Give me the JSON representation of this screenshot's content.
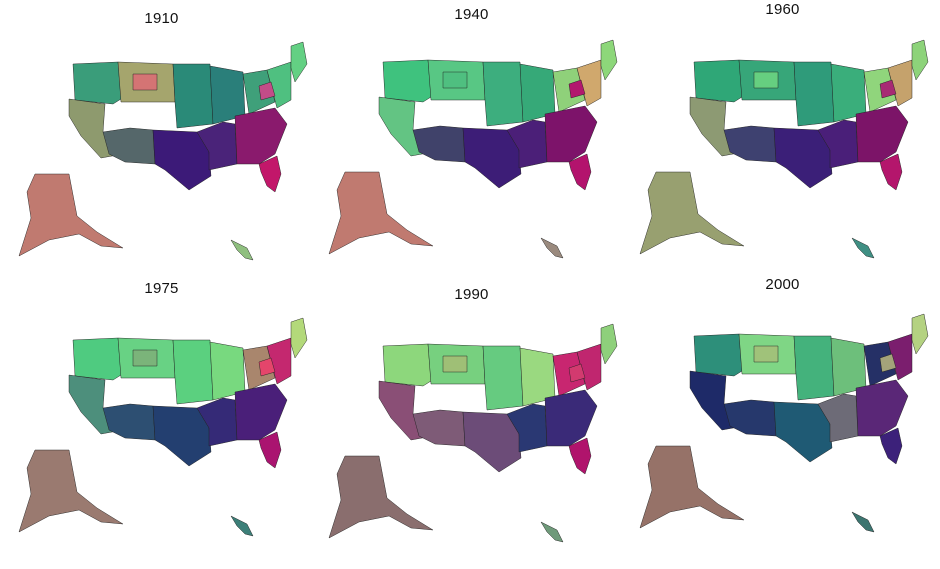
{
  "figure": {
    "panels": [
      {
        "year": "1910",
        "colors": {
          "nw": "#3a9d7a",
          "west": "#8e9a6e",
          "mountain": "#a5a56d",
          "highlight": "#d47474",
          "southwest": "#55676a",
          "plains": "#2a8a78",
          "midwest": "#2a7f7a",
          "lakes": "#3fa07a",
          "texas": "#3c1a78",
          "south": "#4a2379",
          "southeast": "#8a1a6d",
          "florida": "#c2176a",
          "northeast": "#4fc080",
          "newengland": "#63d083",
          "alaska": "#c07a70",
          "hawaii": "#8fbf7f",
          "accent": "#c24c88"
        }
      },
      {
        "year": "1940",
        "colors": {
          "nw": "#3fc27e",
          "west": "#63c483",
          "mountain": "#58c784",
          "highlight": "#4fbf80",
          "southwest": "#40426a",
          "plains": "#3dae7e",
          "midwest": "#36a978",
          "lakes": "#8fd17a",
          "texas": "#3d1d77",
          "south": "#4b1f78",
          "southeast": "#7d136a",
          "florida": "#b3136d",
          "northeast": "#d0a86d",
          "newengland": "#8dd77a",
          "alaska": "#c07a70",
          "hawaii": "#9a8a7e",
          "accent": "#b2186e"
        }
      },
      {
        "year": "1960",
        "colors": {
          "nw": "#2fa777",
          "west": "#8d9a73",
          "mountain": "#37a679",
          "highlight": "#66cf80",
          "southwest": "#3e4170",
          "plains": "#2f9b7a",
          "midwest": "#3aae7b",
          "lakes": "#90d57c",
          "texas": "#3b1f78",
          "south": "#4a1f79",
          "southeast": "#7c1468",
          "florida": "#b4166c",
          "northeast": "#c5a26c",
          "newengland": "#8dd37a",
          "alaska": "#98a070",
          "hawaii": "#3f8f83",
          "accent": "#a72a74"
        }
      },
      {
        "year": "1975",
        "colors": {
          "nw": "#4fcb80",
          "west": "#4d8f7c",
          "mountain": "#68d284",
          "highlight": "#7bb47a",
          "southwest": "#2d4f72",
          "plains": "#5bd07f",
          "midwest": "#78d97f",
          "lakes": "#a9866d",
          "texas": "#233f70",
          "south": "#352a77",
          "southeast": "#4a1f79",
          "florida": "#aa1470",
          "northeast": "#c4286f",
          "newengland": "#b3d97a",
          "alaska": "#9a7a70",
          "hawaii": "#3c7f78",
          "accent": "#e4456b"
        }
      },
      {
        "year": "1990",
        "colors": {
          "nw": "#8dd77c",
          "west": "#8a4f76",
          "mountain": "#77d07f",
          "highlight": "#9fbf76",
          "southwest": "#7e5b77",
          "plains": "#66cb80",
          "midwest": "#9ad980",
          "lakes": "#c82670",
          "texas": "#6c4c78",
          "south": "#2a3873",
          "southeast": "#3a2a78",
          "florida": "#b0146c",
          "northeast": "#c0266f",
          "newengland": "#8ed07b",
          "alaska": "#8a6e6e",
          "hawaii": "#6f9a7a",
          "accent": "#d23a6f"
        }
      },
      {
        "year": "2000",
        "colors": {
          "nw": "#2d8f7a",
          "west": "#1e2a68",
          "mountain": "#7fd685",
          "highlight": "#a0c27a",
          "southwest": "#26386c",
          "plains": "#44b27c",
          "midwest": "#6dbf7b",
          "lakes": "#253066",
          "texas": "#1f5a74",
          "south": "#6d6b77",
          "southeast": "#5a2777",
          "florida": "#3c217a",
          "northeast": "#7b1e6e",
          "newengland": "#b4d281",
          "alaska": "#967268",
          "hawaii": "#3c7570",
          "accent": "#a4a37a"
        }
      }
    ]
  }
}
